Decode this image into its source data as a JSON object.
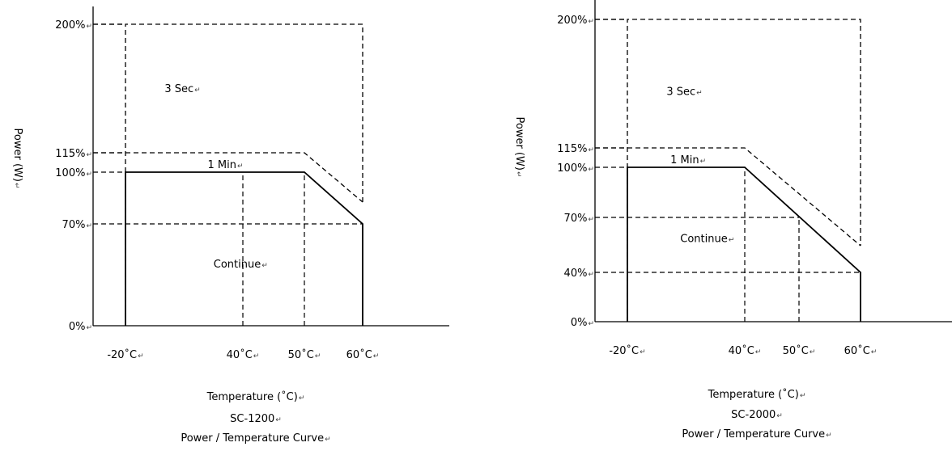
{
  "chart_data": [
    {
      "type": "line",
      "model": "SC-1200",
      "title": "Power / Temperature Curve",
      "xlabel": "Temperature (˚C)",
      "ylabel": "Power (W)",
      "x_ticks": [
        {
          "value": -20,
          "label": "-20˚C"
        },
        {
          "value": 40,
          "label": "40˚C"
        },
        {
          "value": 50,
          "label": "50˚C"
        },
        {
          "value": 60,
          "label": "60˚C"
        }
      ],
      "y_ticks": [
        {
          "value": 0,
          "label": "0%"
        },
        {
          "value": 70,
          "label": "70%"
        },
        {
          "value": 100,
          "label": "100%"
        },
        {
          "value": 115,
          "label": "115%"
        },
        {
          "value": 200,
          "label": "200%"
        }
      ],
      "series": [
        {
          "name": "1 Min",
          "x": [
            -20,
            50,
            60
          ],
          "y": [
            115,
            115,
            85
          ],
          "style": "dashed"
        },
        {
          "name": "Continue",
          "x": [
            -20,
            -20,
            50,
            60,
            60
          ],
          "y": [
            0,
            100,
            100,
            70,
            0
          ],
          "style": "solid"
        },
        {
          "name": "3 Sec",
          "x": [
            -20,
            -20,
            60,
            60
          ],
          "y": [
            0,
            200,
            200,
            85
          ],
          "style": "dashed"
        }
      ],
      "guides": [
        {
          "from": [
            -20,
            70
          ],
          "to": [
            60,
            70
          ]
        },
        {
          "from": [
            40,
            0
          ],
          "to": [
            40,
            100
          ]
        },
        {
          "from": [
            50,
            0
          ],
          "to": [
            50,
            100
          ]
        }
      ],
      "regions": [
        {
          "label": "3 Sec",
          "x": 0,
          "y": 155
        },
        {
          "label": "1 Min",
          "x": 22,
          "y": 103
        },
        {
          "label": "Continue",
          "x": 25,
          "y": 40
        }
      ]
    },
    {
      "type": "line",
      "model": "SC-2000",
      "title": "Power / Temperature Curve",
      "xlabel": "Temperature (˚C)",
      "ylabel": "Power (W)",
      "x_ticks": [
        {
          "value": -20,
          "label": "-20˚C"
        },
        {
          "value": 40,
          "label": "40˚C"
        },
        {
          "value": 50,
          "label": "50˚C"
        },
        {
          "value": 60,
          "label": "60˚C"
        }
      ],
      "y_ticks": [
        {
          "value": 0,
          "label": "0%"
        },
        {
          "value": 40,
          "label": "40%"
        },
        {
          "value": 70,
          "label": "70%"
        },
        {
          "value": 100,
          "label": "100%"
        },
        {
          "value": 115,
          "label": "115%"
        },
        {
          "value": 200,
          "label": "200%"
        }
      ],
      "series": [
        {
          "name": "1 Min",
          "x": [
            -20,
            40,
            60
          ],
          "y": [
            115,
            115,
            55
          ],
          "style": "dashed"
        },
        {
          "name": "Continue",
          "x": [
            -20,
            -20,
            40,
            60,
            60
          ],
          "y": [
            0,
            100,
            100,
            40,
            0
          ],
          "style": "solid"
        },
        {
          "name": "3 Sec",
          "x": [
            -20,
            -20,
            60,
            60
          ],
          "y": [
            0,
            200,
            200,
            55
          ],
          "style": "dashed"
        }
      ],
      "guides": [
        {
          "from": [
            -20,
            70
          ],
          "to": [
            50,
            70
          ]
        },
        {
          "from": [
            -20,
            40
          ],
          "to": [
            60,
            40
          ]
        },
        {
          "from": [
            40,
            0
          ],
          "to": [
            40,
            100
          ]
        },
        {
          "from": [
            50,
            0
          ],
          "to": [
            50,
            70
          ]
        }
      ],
      "regions": [
        {
          "label": "3 Sec",
          "x": 0,
          "y": 150
        },
        {
          "label": "1 Min",
          "x": 2,
          "y": 103
        },
        {
          "label": "Continue",
          "x": 7,
          "y": 57
        }
      ]
    }
  ]
}
